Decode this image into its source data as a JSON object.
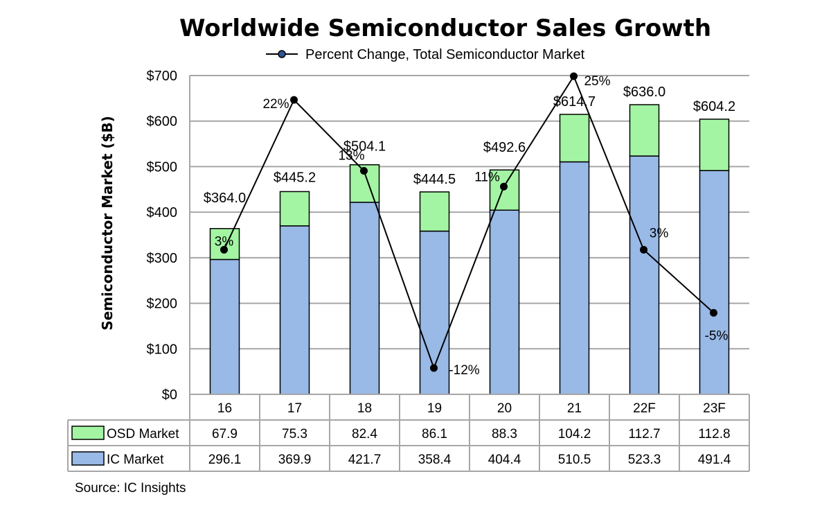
{
  "chart_data": {
    "type": "bar",
    "stacked": true,
    "title": "Worldwide Semiconductor Sales Growth",
    "ylabel": "Semiconductor Market ($B)",
    "ylim": [
      0,
      700
    ],
    "y_ticks": [
      "$0",
      "$100",
      "$200",
      "$300",
      "$400",
      "$500",
      "$600",
      "$700"
    ],
    "categories": [
      "16",
      "17",
      "18",
      "19",
      "20",
      "21",
      "22F",
      "23F"
    ],
    "series": [
      {
        "name": "IC Market",
        "color": "#99b9e6",
        "values": [
          296.1,
          369.9,
          421.7,
          358.4,
          404.4,
          510.5,
          523.3,
          491.4
        ]
      },
      {
        "name": "OSD Market",
        "color": "#a3f5a3",
        "values": [
          67.9,
          75.3,
          82.4,
          86.1,
          88.3,
          104.2,
          112.7,
          112.8
        ]
      }
    ],
    "totals": [
      "$364.0",
      "$445.2",
      "$504.1",
      "$444.5",
      "$492.6",
      "$614.7",
      "$636.0",
      "$604.2"
    ],
    "line": {
      "name": "Percent Change, Total Semiconductor Market",
      "labels": [
        "3%",
        "22%",
        "13%",
        "-12%",
        "11%",
        "25%",
        "3%",
        "-5%"
      ],
      "values": [
        3,
        22,
        13,
        -12,
        11,
        25,
        3,
        -5
      ]
    },
    "grid": true,
    "legend": "top-center"
  },
  "table_rows": [
    {
      "label": "OSD Market",
      "color": "#a3f5a3",
      "values": [
        "67.9",
        "75.3",
        "82.4",
        "86.1",
        "88.3",
        "104.2",
        "112.7",
        "112.8"
      ]
    },
    {
      "label": "IC Market",
      "color": "#99b9e6",
      "values": [
        "296.1",
        "369.9",
        "421.7",
        "358.4",
        "404.4",
        "510.5",
        "523.3",
        "491.4"
      ]
    }
  ],
  "source": "Source: IC Insights"
}
